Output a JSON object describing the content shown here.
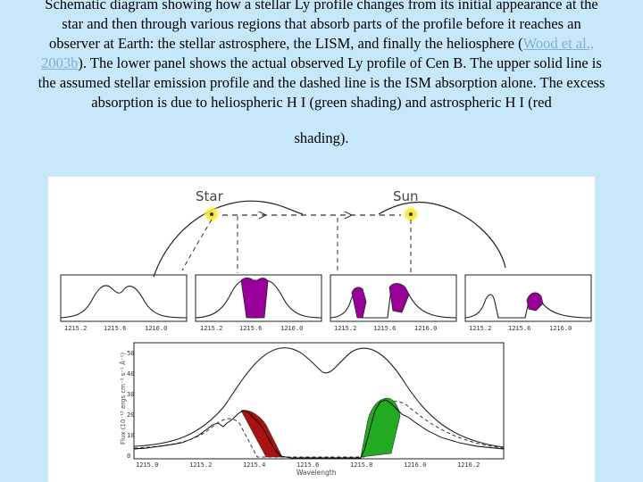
{
  "caption": {
    "before_link": "Schematic diagram showing how a stellar Ly  profile changes from its initial appearance at the star and then through various regions that absorb parts of the profile before it reaches an observer at Earth: the stellar astrosphere, the LISM, and finally the heliosphere (",
    "link": "Wood et al., 2003b",
    "after_link": "). The lower panel shows the actual observed Ly  profile of   Cen B. The upper solid line is the assumed stellar emission profile and the dashed line is the ISM absorption alone. The excess absorption is due to heliospheric H I (green shading) and astrospheric H I (red",
    "last_line": "shading)."
  },
  "figure": {
    "star_label": "Star",
    "sun_label": "Sun",
    "top_ticks": [
      "1215.2",
      "1215.6",
      "1216.0"
    ],
    "bottom_ticks": [
      "1215.0",
      "1215.2",
      "1215.4",
      "1215.6",
      "1215.8",
      "1216.0",
      "1216.2"
    ],
    "xlabel": "Wavelength",
    "ylabel": "Flux (10⁻¹³ ergs cm⁻² s⁻¹ Å⁻¹)",
    "y_ticks": [
      "50",
      "40",
      "30",
      "20",
      "10",
      "0"
    ],
    "colors": {
      "star_glow": "#f5e400",
      "absorption_fill": "#990099",
      "heliospheric_fill": "#22aa22",
      "astrospheric_fill": "#aa1111"
    }
  }
}
